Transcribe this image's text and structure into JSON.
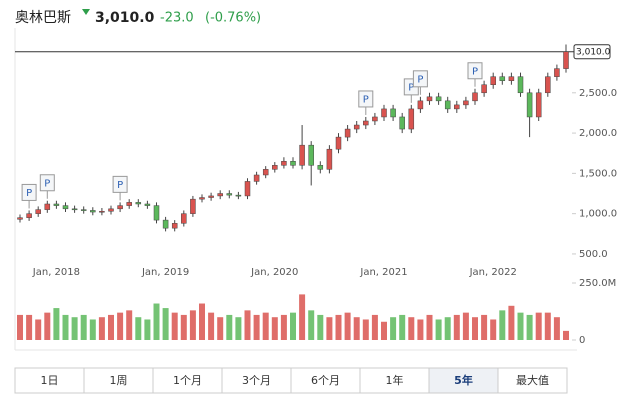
{
  "header": {
    "name": "奥林巴斯",
    "price": {
      "value": 3010,
      "label": "3,010.0"
    },
    "change": "-23.0",
    "change_pct": "(-0.76%)"
  },
  "chart_data": {
    "type": "candlestick",
    "categories": [
      null,
      null,
      null,
      null,
      "Jan, 2018",
      null,
      null,
      null,
      null,
      null,
      null,
      null,
      null,
      null,
      null,
      null,
      "Jan, 2019",
      null,
      null,
      null,
      null,
      null,
      null,
      null,
      null,
      null,
      null,
      null,
      "Jan, 2020",
      null,
      null,
      null,
      null,
      null,
      null,
      null,
      null,
      null,
      null,
      null,
      "Jan, 2021",
      null,
      null,
      null,
      null,
      null,
      null,
      null,
      null,
      null,
      null,
      null,
      "Jan, 2022",
      null,
      null,
      null,
      null,
      null,
      null,
      null,
      null
    ],
    "open": [
      930,
      950,
      1000,
      1050,
      1120,
      1100,
      1060,
      1050,
      1040,
      1020,
      1030,
      1060,
      1100,
      1140,
      1120,
      1100,
      920,
      820,
      880,
      1000,
      1180,
      1200,
      1220,
      1250,
      1230,
      1220,
      1400,
      1480,
      1550,
      1600,
      1650,
      1600,
      1850,
      1600,
      1550,
      1800,
      1950,
      2050,
      2100,
      2150,
      2200,
      2300,
      2200,
      2050,
      2300,
      2400,
      2450,
      2400,
      2300,
      2350,
      2400,
      2500,
      2600,
      2700,
      2650,
      2700,
      2500,
      2200,
      2500,
      2700,
      2800
    ],
    "high": [
      990,
      1040,
      1090,
      1160,
      1160,
      1140,
      1100,
      1090,
      1080,
      1070,
      1100,
      1140,
      1180,
      1180,
      1160,
      1140,
      960,
      920,
      1040,
      1220,
      1240,
      1260,
      1290,
      1290,
      1270,
      1440,
      1520,
      1590,
      1640,
      1700,
      1700,
      2100,
      1900,
      1650,
      1850,
      2000,
      2100,
      2150,
      2200,
      2250,
      2350,
      2350,
      2250,
      2350,
      2450,
      2500,
      2500,
      2450,
      2400,
      2450,
      2550,
      2650,
      2750,
      2750,
      2750,
      2750,
      2550,
      2550,
      2750,
      2850,
      3100
    ],
    "low": [
      890,
      910,
      960,
      1010,
      1060,
      1020,
      1010,
      1000,
      980,
      980,
      990,
      1020,
      1060,
      1080,
      1060,
      880,
      780,
      780,
      840,
      960,
      1140,
      1160,
      1180,
      1190,
      1180,
      1180,
      1360,
      1440,
      1510,
      1560,
      1560,
      1550,
      1350,
      1500,
      1500,
      1750,
      1900,
      2000,
      2050,
      2100,
      2150,
      2150,
      2000,
      2000,
      2250,
      2350,
      2350,
      2250,
      2250,
      2300,
      2350,
      2450,
      2550,
      2600,
      2600,
      2450,
      1950,
      2150,
      2450,
      2650,
      2750
    ],
    "close": [
      950,
      1000,
      1050,
      1120,
      1100,
      1060,
      1050,
      1040,
      1020,
      1030,
      1060,
      1100,
      1140,
      1120,
      1100,
      920,
      820,
      880,
      1000,
      1180,
      1200,
      1220,
      1250,
      1230,
      1220,
      1400,
      1480,
      1550,
      1600,
      1650,
      1600,
      1850,
      1600,
      1550,
      1800,
      1950,
      2050,
      2100,
      2150,
      2200,
      2300,
      2200,
      2050,
      2300,
      2400,
      2450,
      2400,
      2300,
      2350,
      2400,
      2500,
      2600,
      2700,
      2650,
      2700,
      2500,
      2200,
      2500,
      2700,
      2800,
      3010
    ],
    "volume": [
      110,
      110,
      90,
      120,
      140,
      110,
      100,
      110,
      90,
      100,
      110,
      120,
      130,
      100,
      90,
      160,
      140,
      120,
      110,
      130,
      160,
      120,
      100,
      110,
      100,
      130,
      110,
      120,
      100,
      110,
      120,
      200,
      130,
      110,
      100,
      110,
      120,
      100,
      90,
      110,
      80,
      100,
      110,
      100,
      90,
      110,
      90,
      100,
      110,
      120,
      100,
      110,
      90,
      130,
      150,
      120,
      110,
      120,
      120,
      100,
      40
    ],
    "up_color": "#d9534f",
    "down_color": "#5cb85c",
    "ylim": [
      400,
      3180
    ],
    "yticks": [
      {
        "value": 500,
        "label": "500.0"
      },
      {
        "value": 1000,
        "label": "1,000.0"
      },
      {
        "value": 1500,
        "label": "1,500.0"
      },
      {
        "value": 2000,
        "label": "2,000.0"
      },
      {
        "value": 2500,
        "label": "2,500.0"
      }
    ],
    "vlim": [
      0,
      250
    ],
    "vticks": [
      0,
      {
        "value": 250,
        "label": "250.0M"
      }
    ],
    "events": [
      {
        "at": 1,
        "label": "P"
      },
      {
        "at": 3,
        "label": "P"
      },
      {
        "at": 11,
        "label": "P"
      },
      {
        "at": 38,
        "label": "P"
      },
      {
        "at": 43,
        "label": "P"
      },
      {
        "at": 44,
        "label": "P"
      },
      {
        "at": 50,
        "label": "P"
      }
    ]
  },
  "tabs": {
    "items": [
      "1日",
      "1周",
      "1个月",
      "3个月",
      "6个月",
      "1年",
      "5年",
      "最大值"
    ],
    "selected": 6
  }
}
